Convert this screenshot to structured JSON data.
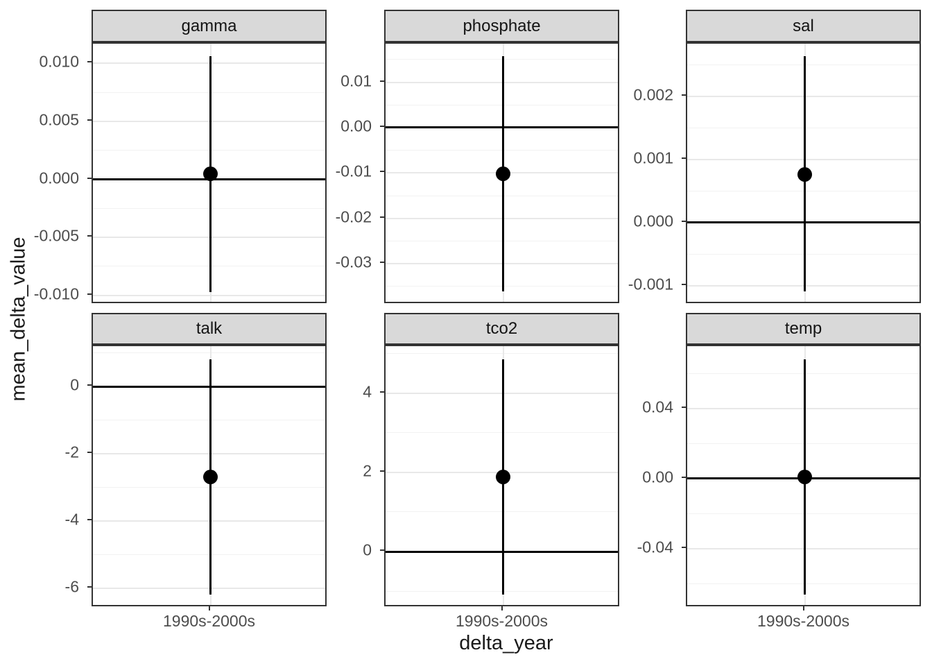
{
  "chart_data": {
    "type": "pointrange-faceted",
    "title": "",
    "xlabel": "delta_year",
    "ylabel": "mean_delta_value",
    "x_categories": [
      "1990s-2000s"
    ],
    "layout_hint": {
      "rows": 2,
      "cols": 3,
      "scales": "free_y",
      "grid": "on",
      "legend": "none"
    },
    "colors": {
      "point": "#000000",
      "range_line": "#000000",
      "zero_line": "#000000",
      "grid_major": "#e8e8e8",
      "grid_minor": "#f2f2f2",
      "strip_bg": "#d9d9d9",
      "panel_border": "#333333",
      "tick_mark": "#333333",
      "tick_label": "#4d4d4d",
      "axis_title": "#1a1a1a"
    },
    "facets": [
      {
        "label": "gamma",
        "ylim": [
          -0.0108,
          0.0117
        ],
        "yticks": {
          "values": [
            0.01,
            0.005,
            0.0,
            -0.005,
            -0.01
          ],
          "labels": [
            "0.010",
            "0.005",
            "0.000",
            "-0.005",
            "-0.010"
          ]
        },
        "yticks_minor": [
          0.0075,
          0.0025,
          -0.0025,
          -0.0075
        ],
        "hline": 0,
        "point": {
          "x": "1990s-2000s",
          "y": 0.0005,
          "ymin": -0.0097,
          "ymax": 0.0106
        }
      },
      {
        "label": "phosphate",
        "ylim": [
          -0.039,
          0.0185
        ],
        "yticks": {
          "values": [
            0.01,
            0.0,
            -0.01,
            -0.02,
            -0.03
          ],
          "labels": [
            "0.01",
            "0.00",
            "-0.01",
            "-0.02",
            "-0.03"
          ]
        },
        "yticks_minor": [
          0.015,
          0.005,
          -0.005,
          -0.015,
          -0.025,
          -0.035
        ],
        "hline": 0,
        "point": {
          "x": "1990s-2000s",
          "y": -0.0101,
          "ymin": -0.0361,
          "ymax": 0.0157
        }
      },
      {
        "label": "sal",
        "ylim": [
          -0.0013,
          0.00284
        ],
        "yticks": {
          "values": [
            0.002,
            0.001,
            0.0,
            -0.001
          ],
          "labels": [
            "0.002",
            "0.001",
            "0.000",
            "-0.001"
          ]
        },
        "yticks_minor": [
          0.0025,
          0.0015,
          0.0005,
          -0.0005
        ],
        "hline": 0,
        "point": {
          "x": "1990s-2000s",
          "y": 0.00076,
          "ymin": -0.00109,
          "ymax": 0.00264
        }
      },
      {
        "label": "talk",
        "ylim": [
          -6.58,
          1.2
        ],
        "yticks": {
          "values": [
            0,
            -2,
            -4,
            -6
          ],
          "labels": [
            "0",
            "-2",
            "-4",
            "-6"
          ]
        },
        "yticks_minor": [
          1,
          -1,
          -3,
          -5
        ],
        "hline": 0,
        "point": {
          "x": "1990s-2000s",
          "y": -2.7,
          "ymin": -6.19,
          "ymax": 0.8
        }
      },
      {
        "label": "tco2",
        "ylim": [
          -1.42,
          5.19
        ],
        "yticks": {
          "values": [
            4,
            2,
            0
          ],
          "labels": [
            "4",
            "2",
            "0"
          ]
        },
        "yticks_minor": [
          5,
          3,
          1,
          -1
        ],
        "hline": 0,
        "point": {
          "x": "1990s-2000s",
          "y": 1.89,
          "ymin": -1.09,
          "ymax": 4.86
        }
      },
      {
        "label": "temp",
        "ylim": [
          -0.0737,
          0.0756
        ],
        "yticks": {
          "values": [
            0.04,
            0.0,
            -0.04
          ],
          "labels": [
            "0.04",
            "0.00",
            "-0.04"
          ]
        },
        "yticks_minor": [
          0.06,
          0.02,
          -0.02,
          -0.06
        ],
        "hline": 0,
        "point": {
          "x": "1990s-2000s",
          "y": 0.0008,
          "ymin": -0.0662,
          "ymax": 0.0681
        }
      }
    ]
  }
}
